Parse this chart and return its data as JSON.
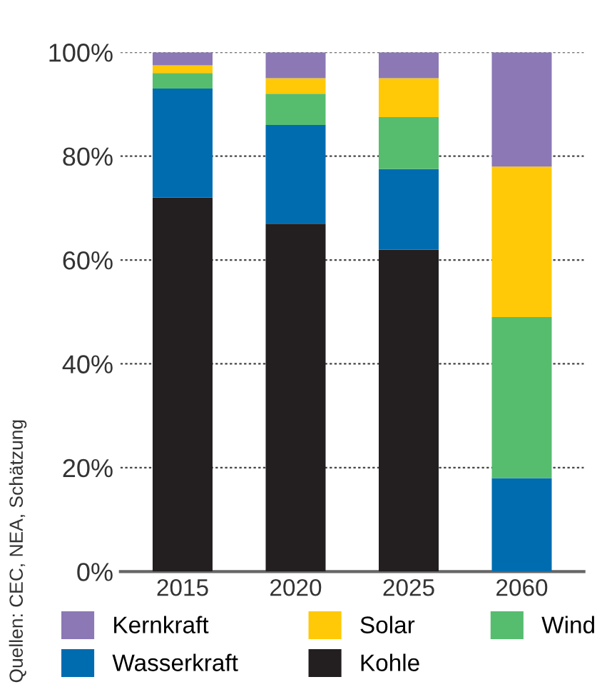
{
  "chart_data": {
    "type": "bar",
    "stacked": true,
    "categories": [
      "2015",
      "2020",
      "2025",
      "2060"
    ],
    "series": [
      {
        "name": "Kohle",
        "color": "#231f20",
        "values": [
          72,
          67,
          62,
          0
        ]
      },
      {
        "name": "Wasserkraft",
        "color": "#006cb0",
        "values": [
          21,
          19,
          15.5,
          18
        ]
      },
      {
        "name": "Wind",
        "color": "#56bd6f",
        "values": [
          3,
          6,
          10,
          31
        ]
      },
      {
        "name": "Solar",
        "color": "#ffc907",
        "values": [
          1.5,
          3,
          7.5,
          29
        ]
      },
      {
        "name": "Kernkraft",
        "color": "#8b78b5",
        "values": [
          2.5,
          5,
          5,
          22
        ]
      }
    ],
    "ylim": [
      0,
      100
    ],
    "yticks": [
      {
        "value": 0,
        "label": "0%"
      },
      {
        "value": 20,
        "label": "20%"
      },
      {
        "value": 40,
        "label": "40%"
      },
      {
        "value": 60,
        "label": "60%"
      },
      {
        "value": 80,
        "label": "80%"
      },
      {
        "value": 100,
        "label": "100%"
      }
    ],
    "grid": "y",
    "legend": "bottom",
    "annotations": [
      "Quellen: CEC, NEA, Schätzung"
    ]
  }
}
